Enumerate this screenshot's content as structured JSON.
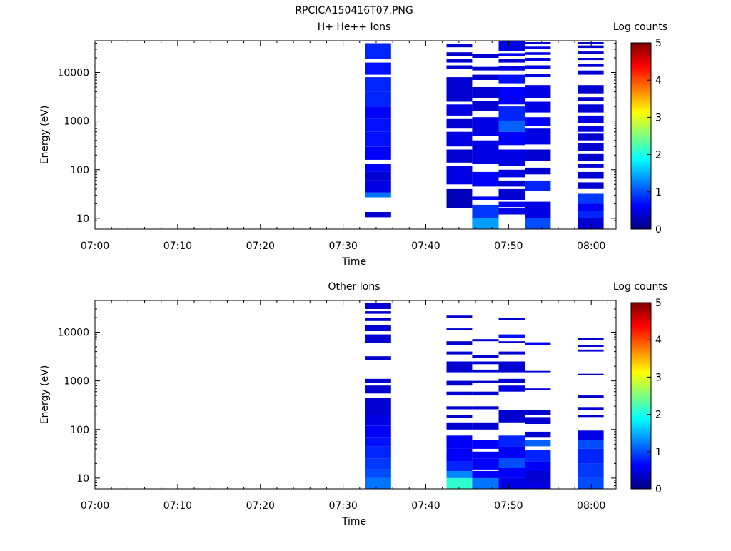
{
  "figure_title": "RPCICA150416T07.PNG",
  "colors": {
    "colormap": [
      "#00007f",
      "#0000ff",
      "#007fff",
      "#00ffff",
      "#7fff7f",
      "#ffff00",
      "#ff7f00",
      "#ff0000",
      "#7f0000"
    ],
    "axis": "#000000",
    "background": "#ffffff"
  },
  "chart_data": [
    {
      "type": "heatmap",
      "title": "H+ He++ Ions",
      "xlabel": "Time",
      "ylabel": "Energy (eV)",
      "x_tick_labels": [
        "07:00",
        "07:10",
        "07:20",
        "07:30",
        "07:40",
        "07:50",
        "08:00"
      ],
      "x_tick_minutes": [
        0,
        10,
        20,
        30,
        40,
        50,
        60
      ],
      "xlim_minutes": [
        0,
        63
      ],
      "y_scale": "log",
      "ylim": [
        6,
        45000
      ],
      "y_tick_values": [
        10,
        100,
        1000,
        10000
      ],
      "y_tick_labels": [
        "10",
        "100",
        "1000",
        "10000"
      ],
      "colorbar": {
        "label": "Log counts",
        "range": [
          0,
          5
        ],
        "tick_labels": [
          "0",
          "1",
          "2",
          "3",
          "4",
          "5"
        ]
      },
      "columns": [
        {
          "t0": 32.7,
          "t1": 35.8,
          "cells": [
            [
              10.5,
              13.5,
              0.4
            ],
            [
              27,
              34,
              1.2
            ],
            [
              34,
              60,
              0.5
            ],
            [
              60,
              90,
              0.4
            ],
            [
              90,
              130,
              0.6
            ],
            [
              160,
              300,
              0.6
            ],
            [
              300,
              600,
              0.7
            ],
            [
              600,
              1100,
              0.7
            ],
            [
              1100,
              2000,
              0.6
            ],
            [
              2000,
              4000,
              0.8
            ],
            [
              4000,
              8000,
              0.8
            ],
            [
              9000,
              16000,
              0.7
            ],
            [
              19000,
              40000,
              0.8
            ]
          ]
        },
        {
          "t0": 42.5,
          "t1": 45.6,
          "cells": [
            [
              16,
              40,
              0.3
            ],
            [
              50,
              120,
              0.5
            ],
            [
              140,
              260,
              0.4
            ],
            [
              300,
              600,
              0.5
            ],
            [
              700,
              1100,
              0.4
            ],
            [
              1300,
              2200,
              0.5
            ],
            [
              2500,
              8000,
              0.4
            ],
            [
              12000,
              14000,
              0.4
            ],
            [
              16000,
              19000,
              0.4
            ],
            [
              22000,
              26000,
              0.4
            ],
            [
              33000,
              38000,
              0.4
            ]
          ]
        },
        {
          "t0": 45.6,
          "t1": 48.8,
          "cells": [
            [
              6,
              10,
              1.4
            ],
            [
              10,
              19,
              0.9
            ],
            [
              24,
              28,
              0.6
            ],
            [
              45,
              90,
              0.6
            ],
            [
              130,
              400,
              0.5
            ],
            [
              500,
              1200,
              0.5
            ],
            [
              1600,
              2600,
              0.4
            ],
            [
              3000,
              5000,
              0.4
            ],
            [
              7000,
              9000,
              0.4
            ],
            [
              11000,
              13000,
              0.4
            ],
            [
              20000,
              24000,
              0.4
            ]
          ]
        },
        {
          "t0": 48.8,
          "t1": 52.0,
          "cells": [
            [
              12,
              16,
              0.5
            ],
            [
              17,
              22,
              0.6
            ],
            [
              24,
              40,
              0.4
            ],
            [
              45,
              60,
              0.4
            ],
            [
              70,
              100,
              0.5
            ],
            [
              120,
              260,
              0.5
            ],
            [
              320,
              600,
              0.6
            ],
            [
              600,
              1000,
              1.1
            ],
            [
              1000,
              2000,
              0.8
            ],
            [
              2200,
              5000,
              0.6
            ],
            [
              6000,
              9000,
              0.7
            ],
            [
              11000,
              13500,
              0.5
            ],
            [
              16000,
              19000,
              0.4
            ],
            [
              22000,
              25000,
              0.6
            ],
            [
              28000,
              45000,
              0.5
            ]
          ]
        },
        {
          "t0": 52.0,
          "t1": 55.1,
          "cells": [
            [
              6,
              10,
              1.0
            ],
            [
              10,
              22,
              0.5
            ],
            [
              36,
              60,
              0.8
            ],
            [
              80,
              110,
              0.4
            ],
            [
              150,
              260,
              0.4
            ],
            [
              330,
              700,
              0.5
            ],
            [
              800,
              1200,
              0.6
            ],
            [
              1500,
              2500,
              0.5
            ],
            [
              3000,
              5500,
              0.5
            ],
            [
              8000,
              9500,
              0.5
            ],
            [
              12000,
              14000,
              0.5
            ],
            [
              17000,
              20000,
              0.5
            ],
            [
              23000,
              26000,
              0.5
            ],
            [
              30000,
              34000,
              0.5
            ],
            [
              38000,
              42000,
              0.4
            ]
          ]
        },
        {
          "t0": 58.4,
          "t1": 61.5,
          "cells": [
            [
              6,
              10,
              0.4
            ],
            [
              10,
              14,
              0.8
            ],
            [
              14,
              20,
              0.6
            ],
            [
              20,
              32,
              0.9
            ],
            [
              40,
              55,
              0.4
            ],
            [
              65,
              90,
              0.4
            ],
            [
              110,
              130,
              0.4
            ],
            [
              150,
              210,
              0.4
            ],
            [
              240,
              350,
              0.4
            ],
            [
              400,
              550,
              0.4
            ],
            [
              600,
              800,
              0.5
            ],
            [
              900,
              1300,
              0.5
            ],
            [
              1500,
              2200,
              0.4
            ],
            [
              2600,
              3100,
              0.4
            ],
            [
              3600,
              5500,
              0.4
            ],
            [
              9000,
              11000,
              0.4
            ],
            [
              13000,
              15000,
              0.4
            ],
            [
              18000,
              20000,
              0.4
            ],
            [
              24000,
              27000,
              0.4
            ],
            [
              32000,
              36000,
              0.4
            ],
            [
              39000,
              42000,
              0.4
            ]
          ]
        }
      ]
    },
    {
      "type": "heatmap",
      "title": "Other Ions",
      "xlabel": "Time",
      "ylabel": "Energy (eV)",
      "x_tick_labels": [
        "07:00",
        "07:10",
        "07:20",
        "07:30",
        "07:40",
        "07:50",
        "08:00"
      ],
      "x_tick_minutes": [
        0,
        10,
        20,
        30,
        40,
        50,
        60
      ],
      "xlim_minutes": [
        0,
        63
      ],
      "y_scale": "log",
      "ylim": [
        6,
        45000
      ],
      "y_tick_values": [
        10,
        100,
        1000,
        10000
      ],
      "y_tick_labels": [
        "10",
        "100",
        "1000",
        "10000"
      ],
      "colorbar": {
        "label": "Log counts",
        "range": [
          0,
          5
        ],
        "tick_labels": [
          "0",
          "1",
          "2",
          "3",
          "4",
          "5"
        ]
      },
      "columns": [
        {
          "t0": 32.7,
          "t1": 35.8,
          "cells": [
            [
              6,
              10,
              1.2
            ],
            [
              10,
              15,
              1.0
            ],
            [
              15,
              25,
              0.9
            ],
            [
              25,
              45,
              0.8
            ],
            [
              45,
              70,
              0.7
            ],
            [
              70,
              120,
              0.6
            ],
            [
              120,
              200,
              0.5
            ],
            [
              200,
              450,
              0.4
            ],
            [
              550,
              800,
              0.4
            ],
            [
              900,
              1100,
              0.4
            ],
            [
              2700,
              3200,
              0.4
            ],
            [
              6000,
              9000,
              0.4
            ],
            [
              10500,
              14000,
              0.4
            ],
            [
              17000,
              20000,
              0.4
            ],
            [
              24000,
              27000,
              0.4
            ],
            [
              30000,
              40000,
              0.4
            ]
          ]
        },
        {
          "t0": 42.5,
          "t1": 45.6,
          "cells": [
            [
              6,
              10,
              2.1
            ],
            [
              10,
              14,
              1.3
            ],
            [
              14,
              22,
              0.8
            ],
            [
              22,
              40,
              0.6
            ],
            [
              40,
              75,
              0.6
            ],
            [
              100,
              140,
              0.4
            ],
            [
              170,
              200,
              0.4
            ],
            [
              260,
              300,
              0.4
            ],
            [
              500,
              600,
              0.4
            ],
            [
              800,
              1000,
              0.4
            ],
            [
              1500,
              2500,
              0.4
            ],
            [
              3500,
              4000,
              0.4
            ],
            [
              5500,
              6500,
              0.4
            ],
            [
              11000,
              12000,
              0.4
            ],
            [
              20000,
              22000,
              0.4
            ]
          ]
        },
        {
          "t0": 45.6,
          "t1": 48.8,
          "cells": [
            [
              6,
              10,
              1.2
            ],
            [
              10,
              14,
              0.6
            ],
            [
              15,
              25,
              0.6
            ],
            [
              25,
              35,
              0.6
            ],
            [
              40,
              60,
              0.6
            ],
            [
              100,
              140,
              0.4
            ],
            [
              260,
              300,
              0.4
            ],
            [
              500,
              600,
              0.4
            ],
            [
              900,
              1000,
              0.4
            ],
            [
              1500,
              1700,
              0.4
            ],
            [
              2200,
              2500,
              0.4
            ],
            [
              3000,
              3400,
              0.4
            ],
            [
              6500,
              7200,
              0.4
            ]
          ]
        },
        {
          "t0": 48.8,
          "t1": 52.0,
          "cells": [
            [
              6,
              10,
              0.5
            ],
            [
              10,
              16,
              0.6
            ],
            [
              16,
              26,
              1.0
            ],
            [
              26,
              45,
              0.6
            ],
            [
              45,
              75,
              0.8
            ],
            [
              140,
              250,
              0.4
            ],
            [
              600,
              800,
              0.5
            ],
            [
              900,
              1100,
              0.4
            ],
            [
              1500,
              2500,
              0.4
            ],
            [
              3500,
              4000,
              0.4
            ],
            [
              6000,
              6500,
              0.4
            ],
            [
              7500,
              9000,
              0.7
            ],
            [
              18000,
              20000,
              0.4
            ]
          ]
        },
        {
          "t0": 52.0,
          "t1": 55.1,
          "cells": [
            [
              6,
              8,
              0.5
            ],
            [
              8,
              14,
              0.4
            ],
            [
              14,
              22,
              0.6
            ],
            [
              22,
              38,
              0.8
            ],
            [
              45,
              60,
              1.1
            ],
            [
              70,
              90,
              0.4
            ],
            [
              130,
              180,
              0.4
            ],
            [
              200,
              250,
              0.4
            ],
            [
              650,
              700,
              0.4
            ],
            [
              1500,
              1600,
              0.4
            ],
            [
              5500,
              6200,
              0.6
            ]
          ]
        },
        {
          "t0": 58.4,
          "t1": 61.5,
          "cells": [
            [
              6,
              10,
              1.0
            ],
            [
              10,
              20,
              0.9
            ],
            [
              20,
              40,
              0.8
            ],
            [
              40,
              60,
              1.0
            ],
            [
              60,
              95,
              0.5
            ],
            [
              180,
              200,
              0.4
            ],
            [
              250,
              290,
              0.4
            ],
            [
              440,
              500,
              0.4
            ],
            [
              1300,
              1400,
              0.4
            ],
            [
              4000,
              4400,
              0.4
            ],
            [
              5000,
              5400,
              0.4
            ],
            [
              7000,
              7500,
              0.4
            ]
          ]
        }
      ]
    }
  ]
}
